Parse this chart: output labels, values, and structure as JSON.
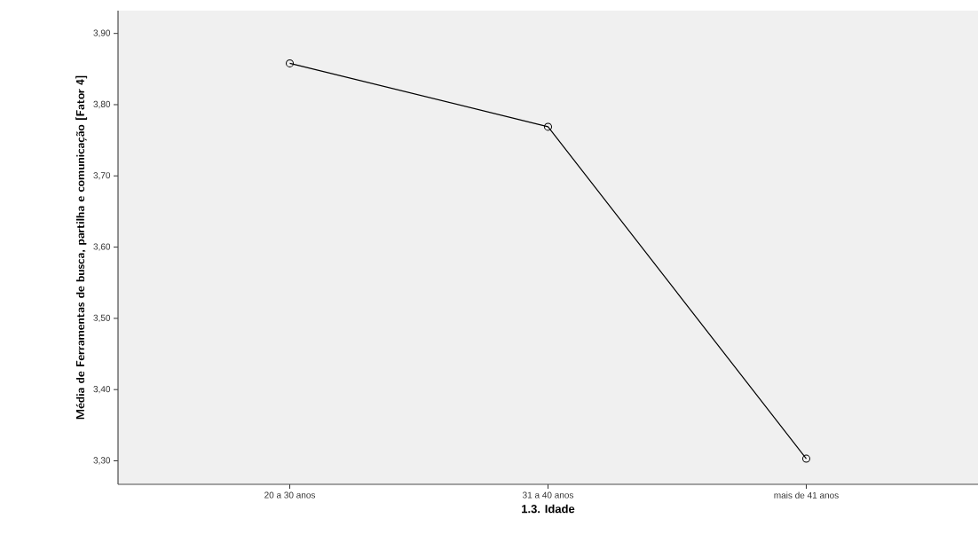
{
  "chart_data": {
    "type": "line",
    "xlabel": "1.3. Idade",
    "ylabel": "Média de Ferramentas de busca, partilha e comunicação [Fator 4]",
    "categories": [
      "20 a 30 anos",
      "31 a 40 anos",
      "mais de 41 anos"
    ],
    "series": [
      {
        "color": "#000000",
        "values": [
          3.858,
          3.769,
          3.303
        ]
      }
    ],
    "ylim": [
      3.267,
      3.932
    ],
    "yticks": [
      {
        "value": 3.3,
        "label": "3,30"
      },
      {
        "value": 3.4,
        "label": "3,40"
      },
      {
        "value": 3.5,
        "label": "3,50"
      },
      {
        "value": 3.6,
        "label": "3,60"
      },
      {
        "value": 3.7,
        "label": "3,70"
      },
      {
        "value": 3.8,
        "label": "3,80"
      },
      {
        "value": 3.9,
        "label": "3,90"
      }
    ],
    "marker": "circle",
    "line_style": "solid",
    "grid": false
  }
}
